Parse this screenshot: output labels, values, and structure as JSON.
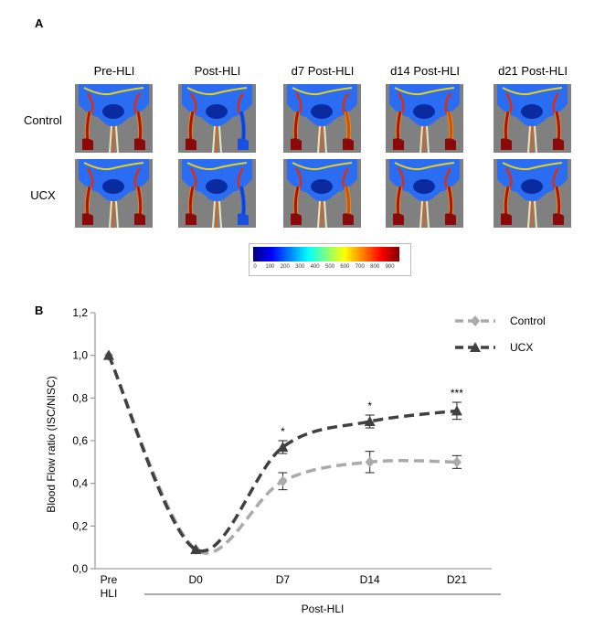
{
  "panel_a": {
    "letter": "A",
    "columns": [
      "Pre-HLI",
      "Post-HLI",
      "d7 Post-HLI",
      "d14 Post-HLI",
      "d21 Post-HLI"
    ],
    "rows": [
      "Control",
      "UCX"
    ],
    "colorbar_ticks": [
      "0",
      "100",
      "200",
      "300",
      "400",
      "500",
      "600",
      "700",
      "800",
      "900"
    ]
  },
  "panel_b": {
    "letter": "B"
  },
  "chart_data": {
    "type": "line",
    "title": "",
    "ylabel": "Blood Flow ratio (ISC/NISC)",
    "xlabel": "Post-HLI",
    "categories": [
      "Pre HLI",
      "D0",
      "D7",
      "D14",
      "D21"
    ],
    "category_lines": [
      [
        "Pre",
        "HLI"
      ],
      [
        "D0"
      ],
      [
        "D7"
      ],
      [
        "D14"
      ],
      [
        "D21"
      ]
    ],
    "x_days": [
      -7,
      0,
      7,
      14,
      21
    ],
    "ylim": [
      0,
      1.2
    ],
    "yticks": [
      "0,0",
      "0,2",
      "0,4",
      "0,6",
      "0,8",
      "1,0",
      "1,2"
    ],
    "ytick_values": [
      0,
      0.2,
      0.4,
      0.6,
      0.8,
      1.0,
      1.2
    ],
    "series": [
      {
        "name": "Control",
        "color": "#aaaaaa",
        "marker": "diamond",
        "values": [
          1.0,
          0.09,
          0.41,
          0.5,
          0.5
        ],
        "errors": [
          0.01,
          0.01,
          0.04,
          0.05,
          0.03
        ]
      },
      {
        "name": "UCX",
        "color": "#404040",
        "marker": "triangle",
        "values": [
          1.0,
          0.09,
          0.57,
          0.69,
          0.74
        ],
        "errors": [
          0.01,
          0.01,
          0.03,
          0.03,
          0.04
        ]
      }
    ],
    "annotations": [
      {
        "category": "D7",
        "text": "*"
      },
      {
        "category": "D14",
        "text": "*"
      },
      {
        "category": "D21",
        "text": "***"
      }
    ],
    "legend_position": "top-right",
    "grid": false
  }
}
